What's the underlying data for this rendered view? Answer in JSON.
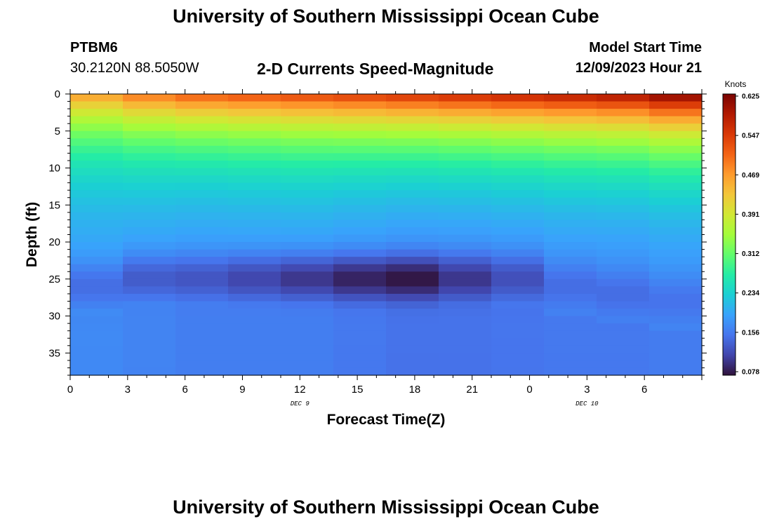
{
  "page": {
    "title_top": "University of Southern Mississippi Ocean Cube",
    "title_bottom": "University of Southern Mississippi Ocean Cube",
    "station_id": "PTBM6",
    "station_coords": "30.2120N  88.5050W",
    "plot_title": "2-D Currents Speed-Magnitude",
    "model_start_label": "Model Start Time",
    "model_start_value": "12/09/2023 Hour 21"
  },
  "chart_data": {
    "type": "heatmap",
    "title": "2-D Currents Speed-Magnitude",
    "xlabel": "Forecast Time(Z)",
    "ylabel": "Depth (ft)",
    "x_ticks": [
      "0",
      "3",
      "6",
      "9",
      "12",
      "15",
      "18",
      "21",
      "0",
      "3",
      "6"
    ],
    "x_range_hours": [
      0,
      33
    ],
    "date_labels": [
      {
        "text": "DEC 9",
        "hour": 12
      },
      {
        "text": "DEC 10",
        "hour": 27
      }
    ],
    "y_ticks": [
      "0",
      "5",
      "10",
      "15",
      "20",
      "25",
      "30",
      "35"
    ],
    "y_tick_values": [
      0,
      5,
      10,
      15,
      20,
      25,
      30,
      35
    ],
    "y_range_ft": [
      0,
      38
    ],
    "colorbar": {
      "label": "Knots",
      "ticks": [
        "0.625",
        "0.547",
        "0.469",
        "0.391",
        "0.312",
        "0.234",
        "0.156",
        "0.078"
      ],
      "range": [
        0.078,
        0.625
      ],
      "colors": [
        "#30123b",
        "#4145ab",
        "#4675ed",
        "#39a2fc",
        "#1bcfd4",
        "#24eca6",
        "#61fc6c",
        "#a4fc3b",
        "#d1e834",
        "#f3c63a",
        "#fe9b2d",
        "#f36315",
        "#d93806",
        "#b11901",
        "#7a0402"
      ]
    },
    "grid": false,
    "columns": [
      {
        "hour": 0,
        "surface": 0.47,
        "speed_min": 0.15,
        "core_depth": 26,
        "deep": 0.17
      },
      {
        "hour": 3,
        "surface": 0.5,
        "speed_min": 0.135,
        "core_depth": 25,
        "deep": 0.165
      },
      {
        "hour": 6,
        "surface": 0.52,
        "speed_min": 0.13,
        "core_depth": 25,
        "deep": 0.16
      },
      {
        "hour": 9,
        "surface": 0.53,
        "speed_min": 0.118,
        "core_depth": 25,
        "deep": 0.16
      },
      {
        "hour": 12,
        "surface": 0.54,
        "speed_min": 0.105,
        "core_depth": 25,
        "deep": 0.16
      },
      {
        "hour": 15,
        "surface": 0.55,
        "speed_min": 0.09,
        "core_depth": 25,
        "deep": 0.155
      },
      {
        "hour": 18,
        "surface": 0.56,
        "speed_min": 0.08,
        "core_depth": 25,
        "deep": 0.15
      },
      {
        "hour": 21,
        "surface": 0.57,
        "speed_min": 0.105,
        "core_depth": 25,
        "deep": 0.15
      },
      {
        "hour": 24,
        "surface": 0.58,
        "speed_min": 0.125,
        "core_depth": 25,
        "deep": 0.152
      },
      {
        "hour": 27,
        "surface": 0.59,
        "speed_min": 0.15,
        "core_depth": 26,
        "deep": 0.155
      },
      {
        "hour": 30,
        "surface": 0.6,
        "speed_min": 0.15,
        "core_depth": 27,
        "deep": 0.155
      },
      {
        "hour": 33,
        "surface": 0.625,
        "speed_min": 0.155,
        "core_depth": 28,
        "deep": 0.158
      }
    ]
  }
}
